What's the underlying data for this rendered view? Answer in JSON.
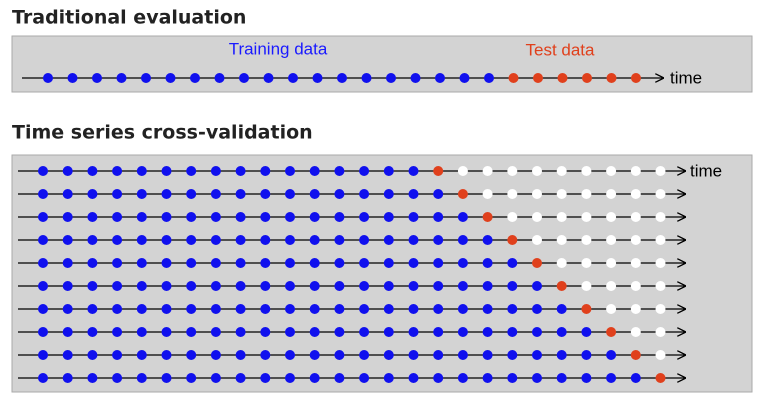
{
  "traditional": {
    "title": "Traditional evaluation",
    "training_label": "Training data",
    "test_label": "Test data",
    "axis_label": "time"
  },
  "cross_validation": {
    "title": "Time series cross-validation",
    "axis_label": "time"
  }
}
